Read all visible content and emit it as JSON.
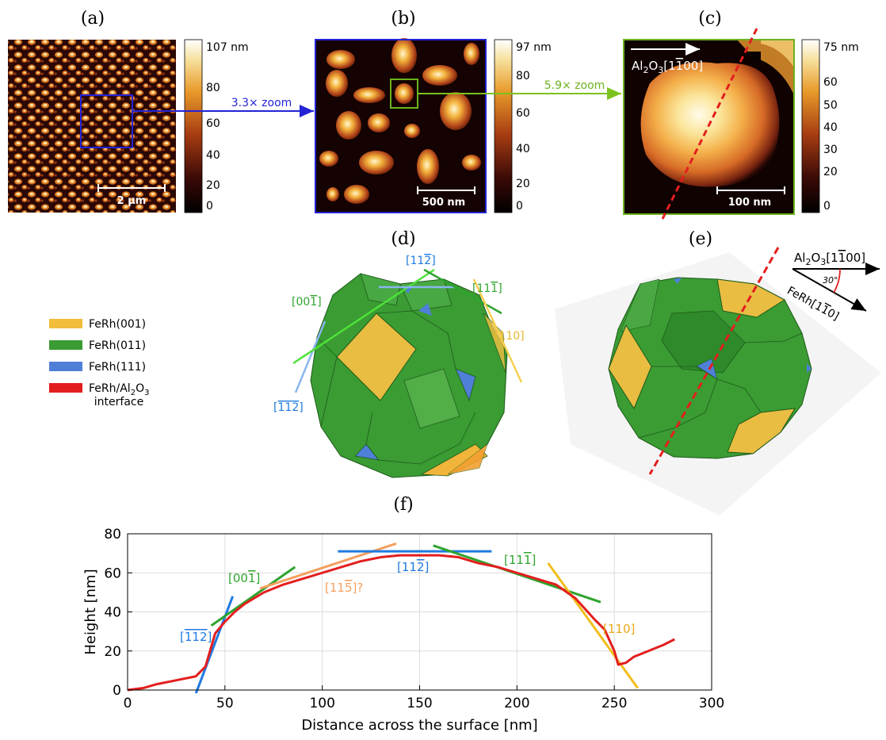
{
  "panels": {
    "a": {
      "label": "(a)",
      "scalebar": "2 μm",
      "colorbar_ticks": [
        "107 nm",
        "80",
        "60",
        "40",
        "20",
        "0"
      ]
    },
    "b": {
      "label": "(b)",
      "scalebar": "500 nm",
      "colorbar_ticks": [
        "97 nm",
        "80",
        "60",
        "40",
        "20",
        "0"
      ]
    },
    "c": {
      "label": "(c)",
      "scalebar": "100 nm",
      "colorbar_ticks": [
        "75 nm",
        "60",
        "50",
        "40",
        "30",
        "20",
        "0"
      ],
      "direction_label": "Al2O3[1100]"
    },
    "d": {
      "label": "(d)"
    },
    "e": {
      "label": "(e)",
      "direction_top": "Al2O3[1100]",
      "direction_bottom": "FeRh[110]",
      "angle": "30°"
    },
    "f": {
      "label": "(f)"
    }
  },
  "zooms": {
    "ab": "3.3× zoom",
    "bc": "5.9× zoom"
  },
  "legend": [
    {
      "label": "FeRh(001)",
      "color": "#f2bd3a"
    },
    {
      "label": "FeRh(011)",
      "color": "#3a9c33"
    },
    {
      "label": "FeRh(111)",
      "color": "#4f7fd6"
    },
    {
      "label": "FeRh/Al2O3",
      "label2": "interface",
      "color": "#e31e1e"
    }
  ],
  "facet_labels_d": [
    "[112]",
    "[001]",
    "[111]",
    "[110]",
    "[112]"
  ],
  "chart_data": {
    "type": "line",
    "xlabel": "Distance across the surface [nm]",
    "ylabel": "Height [nm]",
    "xlim": [
      0,
      300
    ],
    "ylim": [
      0,
      80
    ],
    "xticks": [
      0,
      50,
      100,
      150,
      200,
      250,
      300
    ],
    "yticks": [
      0,
      20,
      40,
      60,
      80
    ],
    "grid": true,
    "profile": {
      "color": "#e31e1e",
      "x": [
        0,
        8,
        15,
        25,
        35,
        40,
        45,
        50,
        55,
        60,
        70,
        80,
        90,
        100,
        110,
        120,
        130,
        140,
        150,
        160,
        170,
        180,
        190,
        200,
        210,
        220,
        230,
        240,
        245,
        250,
        252,
        256,
        260,
        265,
        270,
        275,
        281
      ],
      "y": [
        0,
        1,
        3,
        5,
        7,
        12,
        29,
        35,
        40,
        44,
        50,
        54,
        57,
        60,
        63,
        66,
        68,
        69,
        69,
        69,
        68,
        65,
        63,
        60,
        57,
        54,
        47,
        36,
        31,
        20,
        13,
        14,
        17,
        19,
        21,
        23,
        26
      ]
    },
    "facets": [
      {
        "label": "[112]",
        "color": "#1f7ae0",
        "x": [
          35,
          54
        ],
        "y": [
          -2,
          48
        ]
      },
      {
        "label": "[001]",
        "color": "#2ea42e",
        "x": [
          43,
          86
        ],
        "y": [
          33,
          63
        ]
      },
      {
        "label": "[115]?",
        "color": "#f4a060",
        "x": [
          68,
          138
        ],
        "y": [
          52,
          75
        ]
      },
      {
        "label": "[112]",
        "color": "#1f7ae0",
        "x": [
          108,
          187
        ],
        "y": [
          71,
          71
        ]
      },
      {
        "label": "[111]",
        "color": "#2ea42e",
        "x": [
          157,
          243
        ],
        "y": [
          74,
          45
        ]
      },
      {
        "label": "[110]",
        "color": "#f2bd1a",
        "x": [
          216,
          262
        ],
        "y": [
          65,
          1
        ]
      }
    ]
  }
}
